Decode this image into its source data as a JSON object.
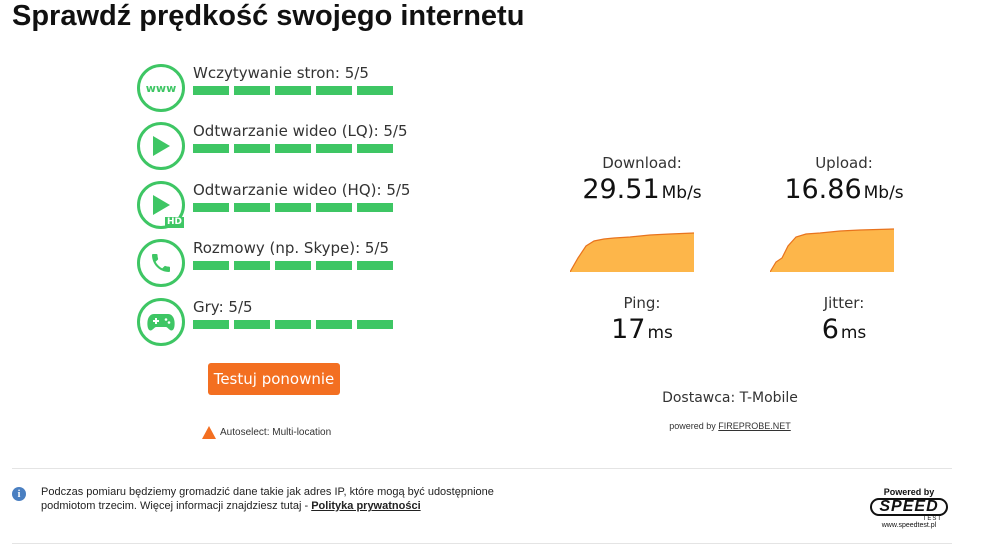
{
  "page": {
    "title": "Sprawdź prędkość swojego internetu"
  },
  "quality": [
    {
      "label": "Wczytywanie stron: 5/5",
      "icon": "www-icon",
      "score": 5,
      "max": 5
    },
    {
      "label": "Odtwarzanie wideo (LQ): 5/5",
      "icon": "play-icon",
      "score": 5,
      "max": 5
    },
    {
      "label": "Odtwarzanie wideo (HQ): 5/5",
      "icon": "play-hd-icon",
      "score": 5,
      "max": 5,
      "badge": "HD"
    },
    {
      "label": "Rozmowy (np. Skype): 5/5",
      "icon": "phone-icon",
      "score": 5,
      "max": 5
    },
    {
      "label": "Gry: 5/5",
      "icon": "gamepad-icon",
      "score": 5,
      "max": 5
    }
  ],
  "www_icon_text": "www",
  "retest_label": "Testuj ponownie",
  "autoselect": "Autoselect: Multi-location",
  "download": {
    "label": "Download:",
    "value": "29.51",
    "unit": "Mb/s"
  },
  "upload": {
    "label": "Upload:",
    "value": "16.86",
    "unit": "Mb/s"
  },
  "ping": {
    "label": "Ping:",
    "value": "17",
    "unit": "ms"
  },
  "jitter": {
    "label": "Jitter:",
    "value": "6",
    "unit": "ms"
  },
  "provider": "Dostawca: T-Mobile",
  "powered_by": {
    "prefix": "powered by ",
    "link": "FIREPROBE.NET"
  },
  "notice": {
    "text": "Podczas pomiaru będziemy gromadzić dane takie jak adres IP, które mogą być udostępnione podmiotom trzecim. Więcej informacji znajdziesz tutaj - ",
    "link": "Polityka prywatności"
  },
  "info_icon_glyph": "i",
  "speedtest": {
    "powered": "Powered by",
    "word": "SPEED",
    "test": "TEST",
    "url": "www.speedtest.pl"
  },
  "colors": {
    "accent_green": "#3ec664",
    "accent_orange": "#f36f21",
    "graph_fill": "#fdb64a"
  }
}
